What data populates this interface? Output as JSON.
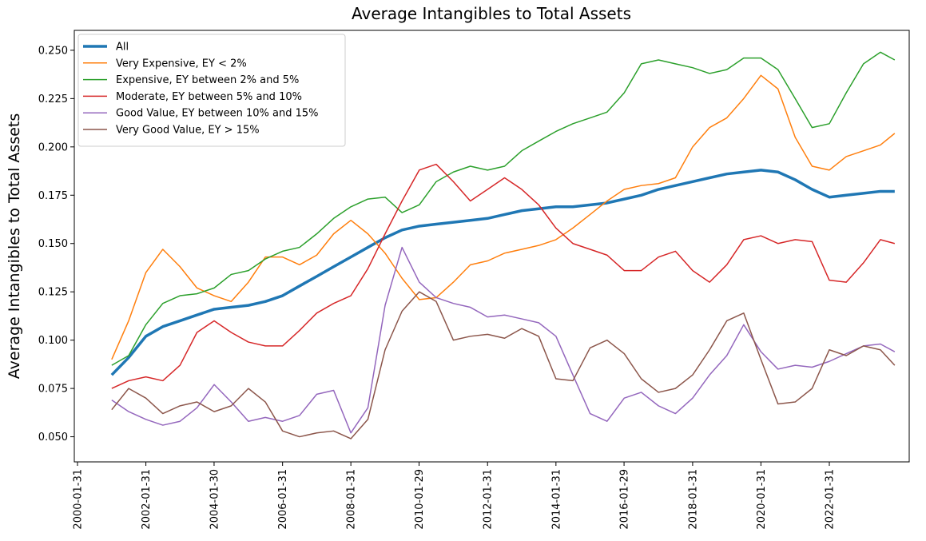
{
  "chart_data": {
    "type": "line",
    "title": "Average Intangibles to Total Assets",
    "y_label": "Average Intangibles to Total Assets",
    "x": [
      "2001-01-31",
      "2001-07-31",
      "2002-01-31",
      "2002-07-31",
      "2003-01-31",
      "2003-07-31",
      "2004-01-31",
      "2004-07-31",
      "2005-01-31",
      "2005-07-31",
      "2006-01-31",
      "2006-07-31",
      "2007-01-31",
      "2007-07-31",
      "2008-01-31",
      "2008-07-31",
      "2009-01-31",
      "2009-07-31",
      "2010-01-31",
      "2010-07-31",
      "2011-01-31",
      "2011-07-31",
      "2012-01-31",
      "2012-07-31",
      "2013-01-31",
      "2013-07-31",
      "2014-01-31",
      "2014-07-31",
      "2015-01-31",
      "2015-07-31",
      "2016-01-31",
      "2016-07-31",
      "2017-01-31",
      "2017-07-31",
      "2018-01-31",
      "2018-07-31",
      "2019-01-31",
      "2019-07-31",
      "2020-01-31",
      "2020-07-31",
      "2021-01-31",
      "2021-07-31",
      "2022-01-31",
      "2022-07-31",
      "2023-01-31",
      "2023-07-31",
      "2023-12-31"
    ],
    "series": [
      {
        "name": "All",
        "color": "#1f77b4",
        "width": 3.5,
        "values": [
          0.082,
          0.091,
          0.102,
          0.107,
          0.11,
          0.113,
          0.116,
          0.117,
          0.118,
          0.12,
          0.123,
          0.128,
          0.133,
          0.138,
          0.143,
          0.148,
          0.153,
          0.157,
          0.159,
          0.16,
          0.161,
          0.162,
          0.163,
          0.165,
          0.167,
          0.168,
          0.169,
          0.169,
          0.17,
          0.171,
          0.173,
          0.175,
          0.178,
          0.18,
          0.182,
          0.184,
          0.186,
          0.187,
          0.188,
          0.187,
          0.183,
          0.178,
          0.174,
          0.175,
          0.176,
          0.177,
          0.177
        ]
      },
      {
        "name": "Very Expensive, EY < 2%",
        "color": "#ff7f0e",
        "width": 1.5,
        "values": [
          0.09,
          0.11,
          0.135,
          0.147,
          0.138,
          0.127,
          0.123,
          0.12,
          0.13,
          0.143,
          0.143,
          0.139,
          0.144,
          0.155,
          0.162,
          0.155,
          0.145,
          0.132,
          0.121,
          0.122,
          0.13,
          0.139,
          0.141,
          0.145,
          0.147,
          0.149,
          0.152,
          0.158,
          0.165,
          0.172,
          0.178,
          0.18,
          0.181,
          0.184,
          0.2,
          0.21,
          0.215,
          0.225,
          0.237,
          0.23,
          0.205,
          0.19,
          0.188,
          0.195,
          0.198,
          0.201,
          0.207
        ]
      },
      {
        "name": "Expensive, EY between 2% and 5%",
        "color": "#2ca02c",
        "width": 1.5,
        "values": [
          0.087,
          0.092,
          0.108,
          0.119,
          0.123,
          0.124,
          0.127,
          0.134,
          0.136,
          0.142,
          0.146,
          0.148,
          0.155,
          0.163,
          0.169,
          0.173,
          0.174,
          0.166,
          0.17,
          0.182,
          0.187,
          0.19,
          0.188,
          0.19,
          0.198,
          0.203,
          0.208,
          0.212,
          0.215,
          0.218,
          0.228,
          0.243,
          0.245,
          0.243,
          0.241,
          0.238,
          0.24,
          0.246,
          0.246,
          0.24,
          0.225,
          0.21,
          0.212,
          0.228,
          0.243,
          0.249,
          0.245
        ]
      },
      {
        "name": "Moderate, EY between 5% and 10%",
        "color": "#d62728",
        "width": 1.5,
        "values": [
          0.075,
          0.079,
          0.081,
          0.079,
          0.087,
          0.104,
          0.11,
          0.104,
          0.099,
          0.097,
          0.097,
          0.105,
          0.114,
          0.119,
          0.123,
          0.137,
          0.155,
          0.172,
          0.188,
          0.191,
          0.182,
          0.172,
          0.178,
          0.184,
          0.178,
          0.17,
          0.158,
          0.15,
          0.147,
          0.144,
          0.136,
          0.136,
          0.143,
          0.146,
          0.136,
          0.13,
          0.139,
          0.152,
          0.154,
          0.15,
          0.152,
          0.151,
          0.131,
          0.13,
          0.14,
          0.152,
          0.15
        ]
      },
      {
        "name": "Good Value, EY between 10% and 15%",
        "color": "#9467bd",
        "width": 1.5,
        "values": [
          0.069,
          0.063,
          0.059,
          0.056,
          0.058,
          0.065,
          0.077,
          0.068,
          0.058,
          0.06,
          0.058,
          0.061,
          0.072,
          0.074,
          0.052,
          0.065,
          0.118,
          0.148,
          0.13,
          0.122,
          0.119,
          0.117,
          0.112,
          0.113,
          0.111,
          0.109,
          0.102,
          0.082,
          0.062,
          0.058,
          0.07,
          0.073,
          0.066,
          0.062,
          0.07,
          0.082,
          0.092,
          0.108,
          0.094,
          0.085,
          0.087,
          0.086,
          0.089,
          0.093,
          0.097,
          0.098,
          0.094
        ]
      },
      {
        "name": "Very Good Value, EY > 15%",
        "color": "#8c564b",
        "width": 1.5,
        "values": [
          0.064,
          0.075,
          0.07,
          0.062,
          0.066,
          0.068,
          0.063,
          0.066,
          0.075,
          0.068,
          0.053,
          0.05,
          0.052,
          0.053,
          0.049,
          0.059,
          0.095,
          0.115,
          0.125,
          0.12,
          0.1,
          0.102,
          0.103,
          0.101,
          0.106,
          0.102,
          0.08,
          0.079,
          0.096,
          0.1,
          0.093,
          0.08,
          0.073,
          0.075,
          0.082,
          0.095,
          0.11,
          0.114,
          0.09,
          0.067,
          0.068,
          0.075,
          0.095,
          0.092,
          0.097,
          0.095,
          0.087
        ]
      }
    ],
    "xlim": [
      "1999-12-28",
      "2024-06-03"
    ],
    "xticks": [
      "2000-01-31",
      "2002-01-31",
      "2004-01-30",
      "2006-01-31",
      "2008-01-31",
      "2010-01-29",
      "2012-01-31",
      "2014-01-31",
      "2016-01-29",
      "2018-01-31",
      "2020-01-31",
      "2022-01-31"
    ],
    "ylim": [
      0.037,
      0.2603
    ],
    "yticks": [
      {
        "value": 0.05,
        "label": "0.050"
      },
      0.075,
      {
        "value": 0.1,
        "label": "0.100"
      },
      0.125,
      {
        "value": 0.15,
        "label": "0.150"
      },
      0.175,
      {
        "value": 0.2,
        "label": "0.200"
      },
      0.225,
      {
        "value": 0.25,
        "label": "0.250"
      }
    ],
    "legend": "upper left"
  }
}
